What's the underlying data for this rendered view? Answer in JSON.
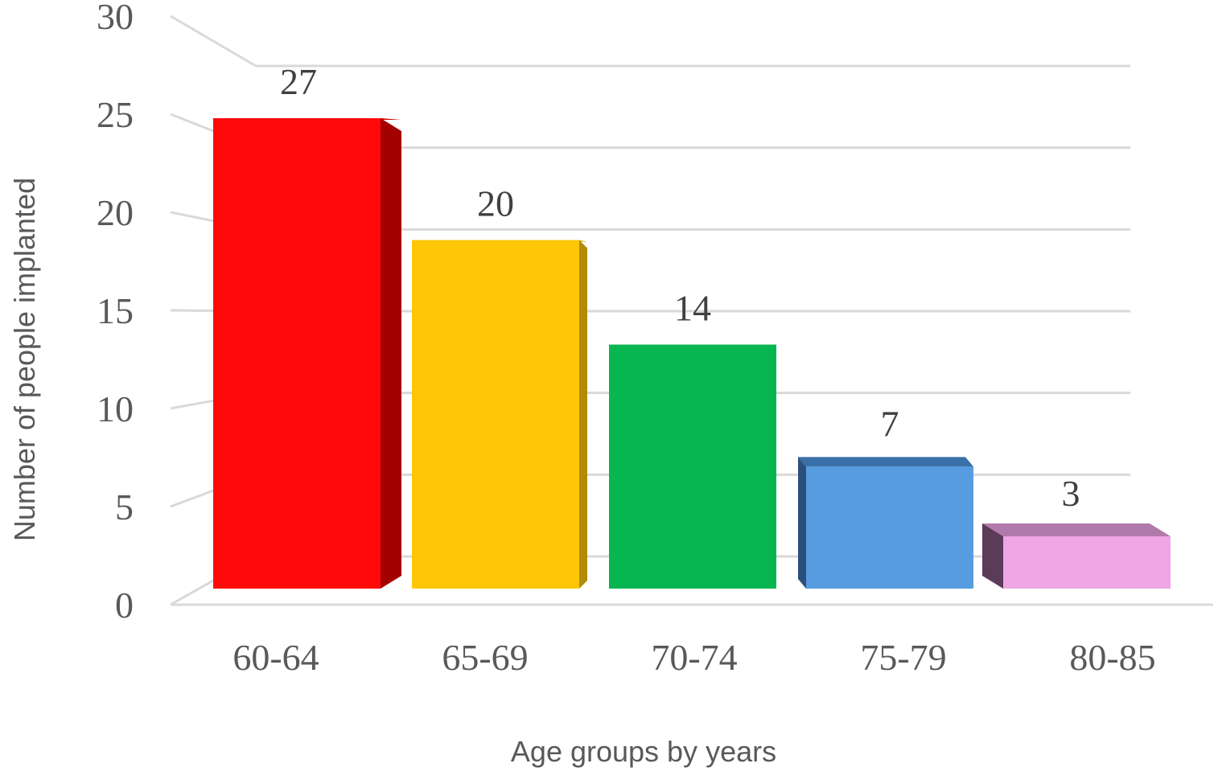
{
  "chart_data": {
    "type": "bar",
    "categories": [
      "60-64",
      "65-69",
      "70-74",
      "75-79",
      "80-85"
    ],
    "values": [
      27,
      20,
      14,
      7,
      3
    ],
    "data_labels": [
      "27",
      "20",
      "14",
      "7",
      "3"
    ],
    "y_ticks": [
      "0",
      "5",
      "10",
      "15",
      "20",
      "25",
      "30"
    ],
    "title": "",
    "xlabel": "Age groups by years",
    "ylabel": "Number of people implanted",
    "ylim": [
      0,
      30
    ],
    "grid": true,
    "legend": "none",
    "style": "3d",
    "colors": [
      "#ff0a0a",
      "#fdc607",
      "#08b651",
      "#579ce0",
      "#eea6e4"
    ],
    "side_colors": [
      "#a30000",
      "#b38a05",
      "#067a38",
      "#2a4f7a",
      "#5c3a5a"
    ],
    "top_colors": [
      "#c80000",
      "#d8a805",
      "#069a44",
      "#3a6fa8",
      "#b07aaa"
    ]
  }
}
